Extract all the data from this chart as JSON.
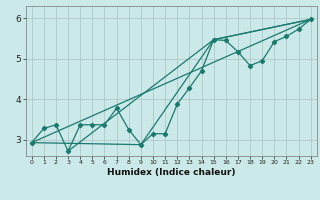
{
  "xlabel": "Humidex (Indice chaleur)",
  "ylabel": "",
  "bg_color": "#cce9e9",
  "grid_color": "#b0c8c8",
  "line_color": "#1a7a6e",
  "xlim": [
    -0.5,
    23.5
  ],
  "ylim": [
    2.6,
    6.3
  ],
  "xticks": [
    0,
    1,
    2,
    3,
    4,
    5,
    6,
    7,
    8,
    9,
    10,
    11,
    12,
    13,
    14,
    15,
    16,
    17,
    18,
    19,
    20,
    21,
    22,
    23
  ],
  "yticks": [
    3,
    4,
    5,
    6
  ],
  "series": [
    [
      0,
      2.93
    ],
    [
      1,
      3.28
    ],
    [
      2,
      3.37
    ],
    [
      3,
      2.72
    ],
    [
      4,
      3.37
    ],
    [
      5,
      3.37
    ],
    [
      6,
      3.37
    ],
    [
      7,
      3.78
    ],
    [
      8,
      3.25
    ],
    [
      9,
      2.88
    ],
    [
      10,
      3.15
    ],
    [
      11,
      3.15
    ],
    [
      12,
      3.88
    ],
    [
      13,
      4.28
    ],
    [
      14,
      4.7
    ],
    [
      15,
      5.47
    ],
    [
      16,
      5.45
    ],
    [
      17,
      5.17
    ],
    [
      18,
      4.83
    ],
    [
      19,
      4.95
    ],
    [
      20,
      5.42
    ],
    [
      21,
      5.55
    ],
    [
      22,
      5.73
    ],
    [
      23,
      5.97
    ]
  ],
  "line2": [
    [
      0,
      2.93
    ],
    [
      23,
      5.97
    ]
  ],
  "line3": [
    [
      3,
      2.72
    ],
    [
      15,
      5.47
    ],
    [
      23,
      5.97
    ]
  ],
  "line4": [
    [
      0,
      2.93
    ],
    [
      9,
      2.88
    ],
    [
      15,
      5.47
    ],
    [
      23,
      5.97
    ]
  ]
}
